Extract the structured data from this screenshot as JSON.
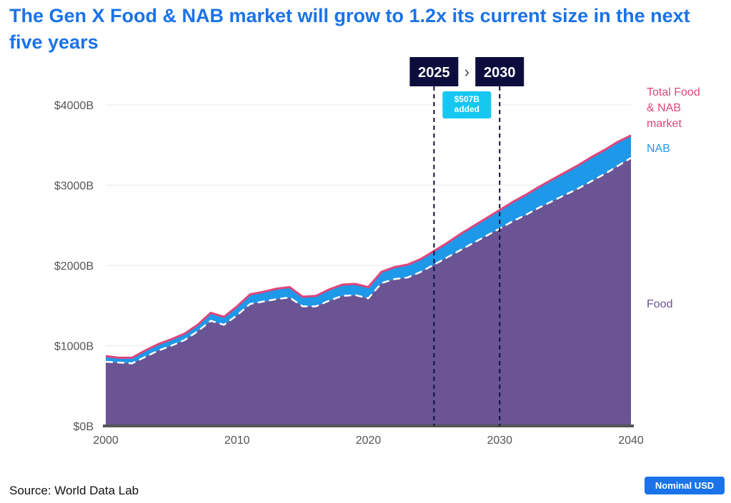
{
  "title": "The Gen X Food & NAB market will grow to 1.2x its current size in the next five years",
  "source": "Source: World Data Lab",
  "badge": "Nominal USD",
  "colors": {
    "title": "#1a73e8",
    "food": "#6a5494",
    "nab": "#1e98e8",
    "total": "#e0457b",
    "marker": "#0d0d3d",
    "annotation": "#16c7f2"
  },
  "chart_data": {
    "type": "area",
    "title": "The Gen X Food & NAB market will grow to 1.2x its current size in the next five years",
    "xlabel": "",
    "ylabel": "",
    "xlim": [
      2000,
      2040
    ],
    "ylim": [
      0,
      4000
    ],
    "x_ticks": [
      2000,
      2010,
      2020,
      2030,
      2040
    ],
    "x_tick_labels": [
      "2000",
      "2010",
      "2020",
      "2030",
      "2040"
    ],
    "y_ticks": [
      0,
      1000,
      2000,
      3000,
      4000
    ],
    "y_tick_labels": [
      "$0B",
      "$1000B",
      "$2000B",
      "$3000B",
      "$4000B"
    ],
    "grid": true,
    "x": [
      2000,
      2001,
      2002,
      2003,
      2004,
      2005,
      2006,
      2007,
      2008,
      2009,
      2010,
      2011,
      2012,
      2013,
      2014,
      2015,
      2016,
      2017,
      2018,
      2019,
      2020,
      2021,
      2022,
      2023,
      2024,
      2025,
      2026,
      2027,
      2028,
      2029,
      2030,
      2031,
      2032,
      2033,
      2034,
      2035,
      2036,
      2037,
      2038,
      2039,
      2040
    ],
    "series": [
      {
        "name": "Food",
        "label": "Food",
        "values": [
          800,
          790,
          780,
          860,
          940,
          1000,
          1070,
          1180,
          1310,
          1260,
          1380,
          1520,
          1550,
          1580,
          1600,
          1490,
          1490,
          1560,
          1620,
          1630,
          1590,
          1780,
          1830,
          1850,
          1920,
          2010,
          2100,
          2190,
          2280,
          2370,
          2460,
          2550,
          2630,
          2720,
          2800,
          2880,
          2960,
          3050,
          3140,
          3240,
          3340
        ]
      },
      {
        "name": "NAB",
        "label": "NAB",
        "values": [
          70,
          60,
          70,
          80,
          80,
          80,
          80,
          80,
          100,
          100,
          110,
          120,
          120,
          130,
          130,
          120,
          130,
          140,
          140,
          140,
          140,
          140,
          150,
          160,
          160,
          170,
          180,
          200,
          210,
          220,
          230,
          240,
          250,
          260,
          270,
          280,
          290,
          300,
          300,
          300,
          280
        ]
      },
      {
        "name": "Total Food & NAB market",
        "label": [
          "Total Food",
          "& NAB",
          "market"
        ],
        "values": [
          870,
          850,
          850,
          940,
          1020,
          1080,
          1150,
          1260,
          1410,
          1360,
          1490,
          1640,
          1670,
          1710,
          1730,
          1610,
          1620,
          1700,
          1760,
          1770,
          1730,
          1920,
          1980,
          2010,
          2080,
          2180,
          2280,
          2390,
          2490,
          2590,
          2690,
          2790,
          2880,
          2980,
          3070,
          3160,
          3250,
          3350,
          3440,
          3540,
          3620
        ]
      }
    ],
    "markers": [
      {
        "x": 2025,
        "label": "2025"
      },
      {
        "x": 2030,
        "label": "2030"
      }
    ],
    "marker_arrow": "›",
    "annotations": [
      {
        "text": [
          "$507B",
          "added"
        ],
        "between": [
          2025,
          2030
        ]
      }
    ]
  }
}
